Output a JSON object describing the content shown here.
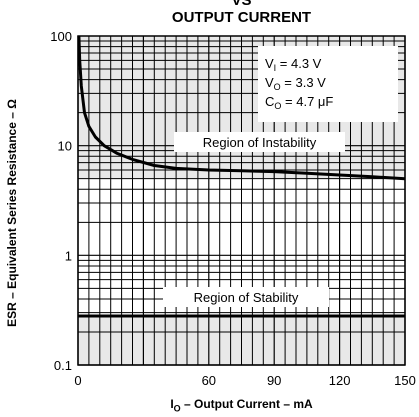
{
  "chart_data": {
    "type": "line",
    "title_top": "VS",
    "title": "OUTPUT CURRENT",
    "ylabel": "ESR – Equivalent Series Resistance – Ω",
    "xlabel": {
      "prefix": "I",
      "sub": "O",
      "rest": " – Output Current – mA"
    },
    "y_scale": "log",
    "ylim": [
      0.1,
      100
    ],
    "xlim": [
      0,
      150
    ],
    "x_ticks": [
      "0",
      "60",
      "90",
      "120",
      "150"
    ],
    "y_ticks": [
      "100",
      "10",
      "1",
      "0.1"
    ],
    "conditions": [
      {
        "main": "V",
        "sub": "I",
        "rest": " = 4.3 V"
      },
      {
        "main": "V",
        "sub": "O",
        "rest": " = 3.3 V"
      },
      {
        "main": "C",
        "sub": "O",
        "rest": " = 4.7 μF"
      }
    ],
    "regions": [
      {
        "label": "Region of Instability",
        "ylim": [
          5,
          100
        ],
        "color": "#e8e8e8"
      },
      {
        "label": "Region of Stability",
        "ylim": [
          0.28,
          5
        ],
        "color": "#ffffff"
      },
      {
        "label": "",
        "ylim": [
          0.1,
          0.28
        ],
        "color": "#e8e8e8"
      }
    ],
    "series": [
      {
        "values": [
          [
            0.4,
            100
          ],
          [
            0.8,
            60
          ],
          [
            1.5,
            35
          ],
          [
            3,
            20
          ],
          [
            5,
            15
          ],
          [
            8,
            12
          ],
          [
            12,
            10
          ],
          [
            18,
            8.5
          ],
          [
            25,
            7.5
          ],
          [
            35,
            6.6
          ],
          [
            45,
            6.2
          ],
          [
            60,
            6.0
          ],
          [
            75,
            5.9
          ],
          [
            90,
            5.8
          ],
          [
            105,
            5.6
          ],
          [
            120,
            5.4
          ],
          [
            135,
            5.2
          ],
          [
            150,
            5.0
          ]
        ],
        "color": "#000000"
      },
      {
        "values": [
          [
            0,
            0.28
          ],
          [
            150,
            0.28
          ]
        ],
        "color": "#000000"
      }
    ],
    "grid": true
  }
}
